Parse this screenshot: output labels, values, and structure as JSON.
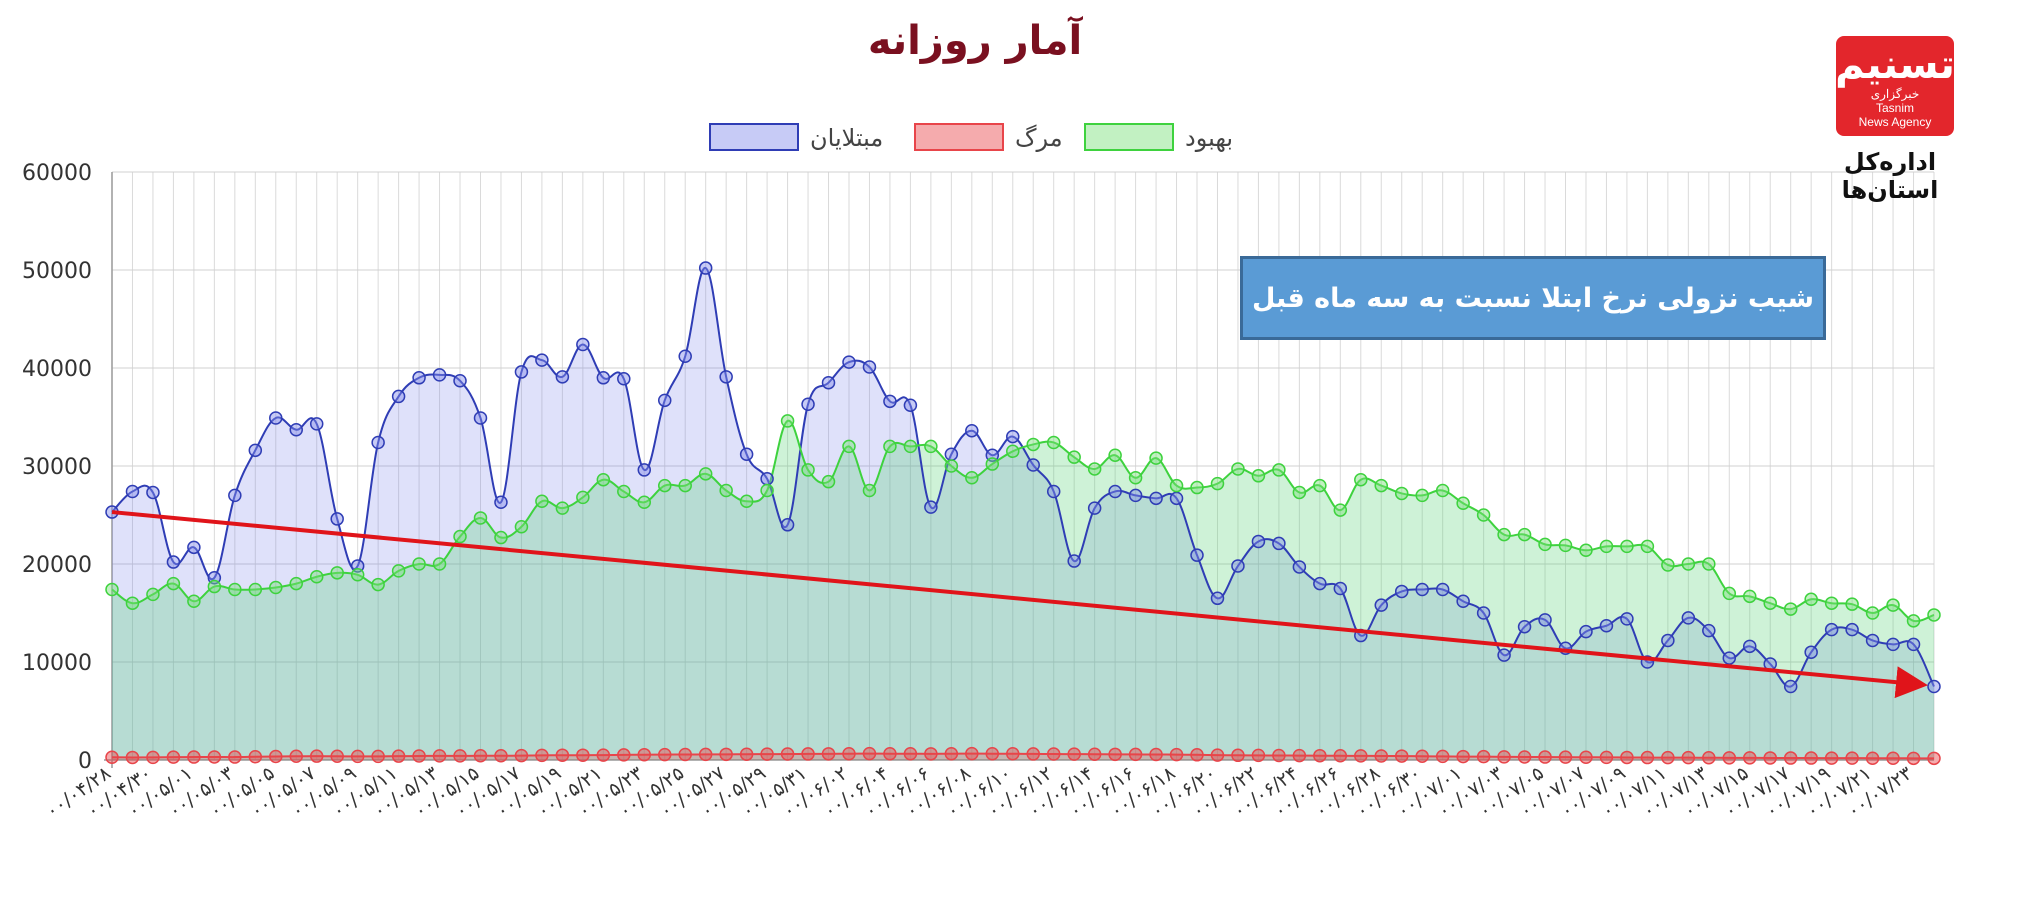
{
  "logo": {
    "mark": "تسنیم",
    "line1": "خبرگزاری",
    "line2": "Tasnim",
    "line3": "News Agency"
  },
  "logo_caption": "اداره‌کل استان‌ها",
  "annotation": "شیب نزولی نرخ ابتلا نسبت به سه ماه قبل",
  "colors": {
    "infected": "#2f3db5",
    "death": "#e8454a",
    "recovered": "#3ed23e",
    "trend": "#e0141a",
    "title": "#7a1020"
  },
  "chart_data": {
    "type": "line",
    "title": "آمار روزانه",
    "ylim": [
      0,
      60000
    ],
    "y_ticks": [
      0,
      10000,
      20000,
      30000,
      40000,
      50000,
      60000
    ],
    "grid": true,
    "legend_position": "top",
    "x_tick_labels": [
      "۰۰/۰۴/۲۸",
      "۰۰/۰۴/۳۰",
      "۰۰/۰۵/۰۱",
      "۰۰/۰۵/۰۳",
      "۰۰/۰۵/۰۵",
      "۰۰/۰۵/۰۷",
      "۰۰/۰۵/۰۹",
      "۰۰/۰۵/۱۱",
      "۰۰/۰۵/۱۳",
      "۰۰/۰۵/۱۵",
      "۰۰/۰۵/۱۷",
      "۰۰/۰۵/۱۹",
      "۰۰/۰۵/۲۱",
      "۰۰/۰۵/۲۳",
      "۰۰/۰۵/۲۵",
      "۰۰/۰۵/۲۷",
      "۰۰/۰۵/۲۹",
      "۰۰/۰۵/۳۱",
      "۰۰/۰۶/۰۲",
      "۰۰/۰۶/۰۴",
      "۰۰/۰۶/۰۶",
      "۰۰/۰۶/۰۸",
      "۰۰/۰۶/۱۰",
      "۰۰/۰۶/۱۲",
      "۰۰/۰۶/۱۴",
      "۰۰/۰۶/۱۶",
      "۰۰/۰۶/۱۸",
      "۰۰/۰۶/۲۰",
      "۰۰/۰۶/۲۲",
      "۰۰/۰۶/۲۴",
      "۰۰/۰۶/۲۶",
      "۰۰/۰۶/۲۸",
      "۰۰/۰۶/۳۰",
      "۰۰/۰۷/۰۱",
      "۰۰/۰۷/۰۳",
      "۰۰/۰۷/۰۵",
      "۰۰/۰۷/۰۷",
      "۰۰/۰۷/۰۹",
      "۰۰/۰۷/۱۱",
      "۰۰/۰۷/۱۳",
      "۰۰/۰۷/۱۵",
      "۰۰/۰۷/۱۷",
      "۰۰/۰۷/۱۹",
      "۰۰/۰۷/۲۱",
      "۰۰/۰۷/۲۳"
    ],
    "series": [
      {
        "name": "مبتلایان",
        "values": [
          25300,
          27400,
          27300,
          20200,
          21700,
          18600,
          27000,
          31600,
          34900,
          33700,
          34300,
          24600,
          19800,
          32400,
          37100,
          39000,
          39300,
          38700,
          34900,
          26300,
          39600,
          40800,
          39100,
          42400,
          39000,
          38900,
          29600,
          36700,
          41200,
          50200,
          39100,
          31200,
          28700,
          24000,
          36300,
          38500,
          40600,
          40100,
          36600,
          36200,
          25800,
          31200,
          33600,
          31100,
          33000,
          30100,
          27400,
          20300,
          25700,
          27400,
          27000,
          26700,
          26700,
          20900,
          16500,
          19800,
          22300,
          22100,
          19700,
          18000,
          17500,
          12700,
          15800,
          17200,
          17400,
          17400,
          16200,
          15000,
          10700,
          13600,
          14300,
          11400,
          13100,
          13700,
          14400,
          10000,
          12200,
          14500,
          13200,
          10400,
          11600,
          9800,
          7500,
          11000,
          13300,
          13300,
          12200,
          11800,
          11800,
          7500
        ]
      },
      {
        "name": "مرگ",
        "values": [
          280,
          260,
          270,
          290,
          300,
          310,
          300,
          330,
          360,
          380,
          390,
          380,
          370,
          370,
          390,
          410,
          420,
          420,
          430,
          430,
          450,
          470,
          490,
          490,
          500,
          520,
          540,
          550,
          560,
          570,
          580,
          590,
          600,
          610,
          620,
          630,
          640,
          650,
          640,
          640,
          630,
          640,
          650,
          640,
          640,
          620,
          610,
          600,
          590,
          580,
          570,
          560,
          550,
          530,
          500,
          480,
          470,
          460,
          450,
          440,
          430,
          420,
          410,
          400,
          380,
          370,
          350,
          340,
          320,
          310,
          300,
          290,
          280,
          270,
          260,
          250,
          240,
          240,
          230,
          220,
          220,
          210,
          200,
          200,
          190,
          190,
          180,
          180,
          170,
          170
        ]
      },
      {
        "name": "بهبود",
        "values": [
          17400,
          16000,
          16900,
          18000,
          16200,
          17700,
          17400,
          17400,
          17600,
          18000,
          18700,
          19100,
          18900,
          17900,
          19300,
          20000,
          20000,
          22800,
          24700,
          22700,
          23800,
          26400,
          25700,
          26800,
          28600,
          27400,
          26300,
          28000,
          28000,
          29200,
          27500,
          26400,
          27500,
          34600,
          29600,
          28400,
          32000,
          27500,
          32000,
          32000,
          32000,
          30000,
          28800,
          30200,
          31500,
          32200,
          32400,
          30900,
          29700,
          31100,
          28800,
          30800,
          28000,
          27800,
          28200,
          29700,
          29000,
          29600,
          27300,
          28000,
          25500,
          28600,
          28000,
          27200,
          27000,
          27500,
          26200,
          25000,
          23000,
          23000,
          22000,
          21900,
          21400,
          21800,
          21800,
          21800,
          19900,
          20000,
          20000,
          17000,
          16700,
          16000,
          15400,
          16400,
          16000,
          15900,
          15000,
          15800,
          14200,
          14800
        ]
      }
    ],
    "trend_line": {
      "from": 25300,
      "to": 7500
    }
  }
}
